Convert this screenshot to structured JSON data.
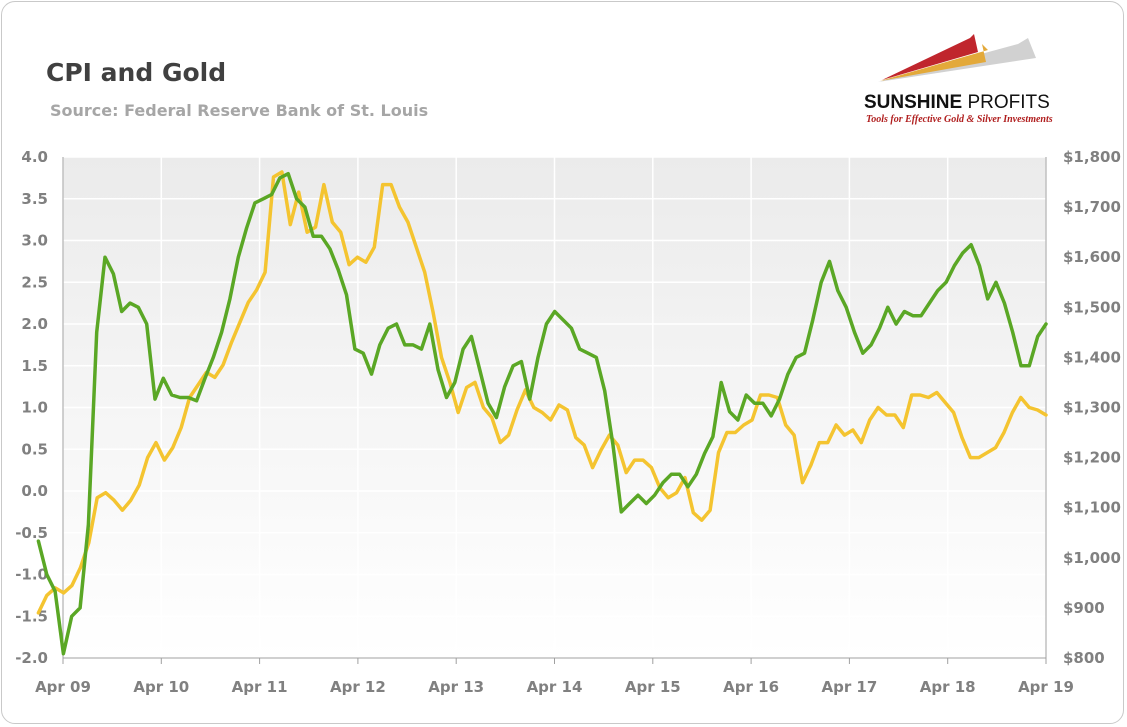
{
  "header": {
    "title": "CPI and Gold",
    "subtitle": "Source: Federal Reserve Bank of St. Louis"
  },
  "logo": {
    "name_bold": "SUNSHINE",
    "name_regular": " PROFITS",
    "tagline": "Tools for Effective Gold & Silver Investments",
    "colors": {
      "red": "#c0262d",
      "gold": "#e3a93a",
      "gray": "#bdbdbd"
    }
  },
  "chart_data": {
    "type": "line",
    "x_start": "2009-04",
    "x_ticks": [
      "Apr 09",
      "Apr 10",
      "Apr 11",
      "Apr 12",
      "Apr 13",
      "Apr 14",
      "Apr 15",
      "Apr 16",
      "Apr 17",
      "Apr 18",
      "Apr 19"
    ],
    "y_left": {
      "min": -2.0,
      "max": 4.0,
      "ticks": [
        "4.0",
        "3.5",
        "3.0",
        "2.5",
        "2.0",
        "1.5",
        "1.0",
        "0.5",
        "0.0",
        "-0.5",
        "-1.0",
        "-1.5",
        "-2.0"
      ]
    },
    "y_right": {
      "min": 800,
      "max": 1800,
      "ticks": [
        "$1,800",
        "$1,700",
        "$1,600",
        "$1,500",
        "$1,400",
        "$1,300",
        "$1,200",
        "$1,100",
        "$1,000",
        "$900",
        "$800"
      ]
    },
    "series": [
      {
        "axis": "left",
        "color": "#5aa725",
        "values": [
          -0.6,
          -1.0,
          -1.2,
          -1.95,
          -1.5,
          -1.4,
          -0.4,
          1.9,
          2.8,
          2.6,
          2.15,
          2.25,
          2.2,
          2.0,
          1.1,
          1.35,
          1.15,
          1.12,
          1.12,
          1.08,
          1.35,
          1.6,
          1.9,
          2.3,
          2.8,
          3.15,
          3.45,
          3.5,
          3.55,
          3.75,
          3.8,
          3.5,
          3.4,
          3.05,
          3.05,
          2.9,
          2.65,
          2.35,
          1.7,
          1.65,
          1.4,
          1.75,
          1.95,
          2.0,
          1.75,
          1.75,
          1.7,
          2.0,
          1.45,
          1.12,
          1.3,
          1.7,
          1.85,
          1.45,
          1.05,
          0.88,
          1.25,
          1.5,
          1.55,
          1.1,
          1.6,
          2.0,
          2.15,
          2.05,
          1.95,
          1.7,
          1.65,
          1.6,
          1.2,
          0.55,
          -0.25,
          -0.15,
          -0.05,
          -0.15,
          -0.05,
          0.1,
          0.2,
          0.2,
          0.05,
          0.2,
          0.45,
          0.65,
          1.3,
          0.95,
          0.85,
          1.15,
          1.05,
          1.05,
          0.9,
          1.1,
          1.4,
          1.6,
          1.65,
          2.05,
          2.5,
          2.75,
          2.4,
          2.2,
          1.9,
          1.65,
          1.75,
          1.95,
          2.2,
          2.0,
          2.15,
          2.1,
          2.1,
          2.25,
          2.4,
          2.5,
          2.7,
          2.85,
          2.95,
          2.7,
          2.3,
          2.5,
          2.25,
          1.9,
          1.5,
          1.5,
          1.85,
          2.0
        ]
      },
      {
        "axis": "right",
        "color": "#f4c430",
        "values": [
          890,
          925,
          940,
          930,
          945,
          980,
          1030,
          1120,
          1130,
          1115,
          1095,
          1115,
          1145,
          1200,
          1230,
          1195,
          1220,
          1260,
          1320,
          1345,
          1370,
          1360,
          1385,
          1430,
          1470,
          1510,
          1535,
          1570,
          1760,
          1770,
          1665,
          1730,
          1650,
          1660,
          1745,
          1670,
          1650,
          1585,
          1600,
          1590,
          1620,
          1745,
          1745,
          1700,
          1670,
          1620,
          1570,
          1490,
          1400,
          1350,
          1290,
          1340,
          1350,
          1300,
          1280,
          1230,
          1245,
          1295,
          1335,
          1300,
          1290,
          1275,
          1305,
          1295,
          1240,
          1225,
          1180,
          1215,
          1245,
          1225,
          1170,
          1195,
          1195,
          1180,
          1140,
          1120,
          1130,
          1160,
          1090,
          1075,
          1095,
          1210,
          1250,
          1250,
          1265,
          1275,
          1325,
          1325,
          1320,
          1265,
          1245,
          1150,
          1185,
          1230,
          1230,
          1265,
          1245,
          1255,
          1230,
          1275,
          1300,
          1285,
          1285,
          1260,
          1325,
          1325,
          1320,
          1330,
          1310,
          1290,
          1240,
          1200,
          1200,
          1210,
          1220,
          1250,
          1290,
          1320,
          1300,
          1295,
          1285
        ]
      }
    ],
    "grid": "horizontal",
    "legend": "none"
  }
}
